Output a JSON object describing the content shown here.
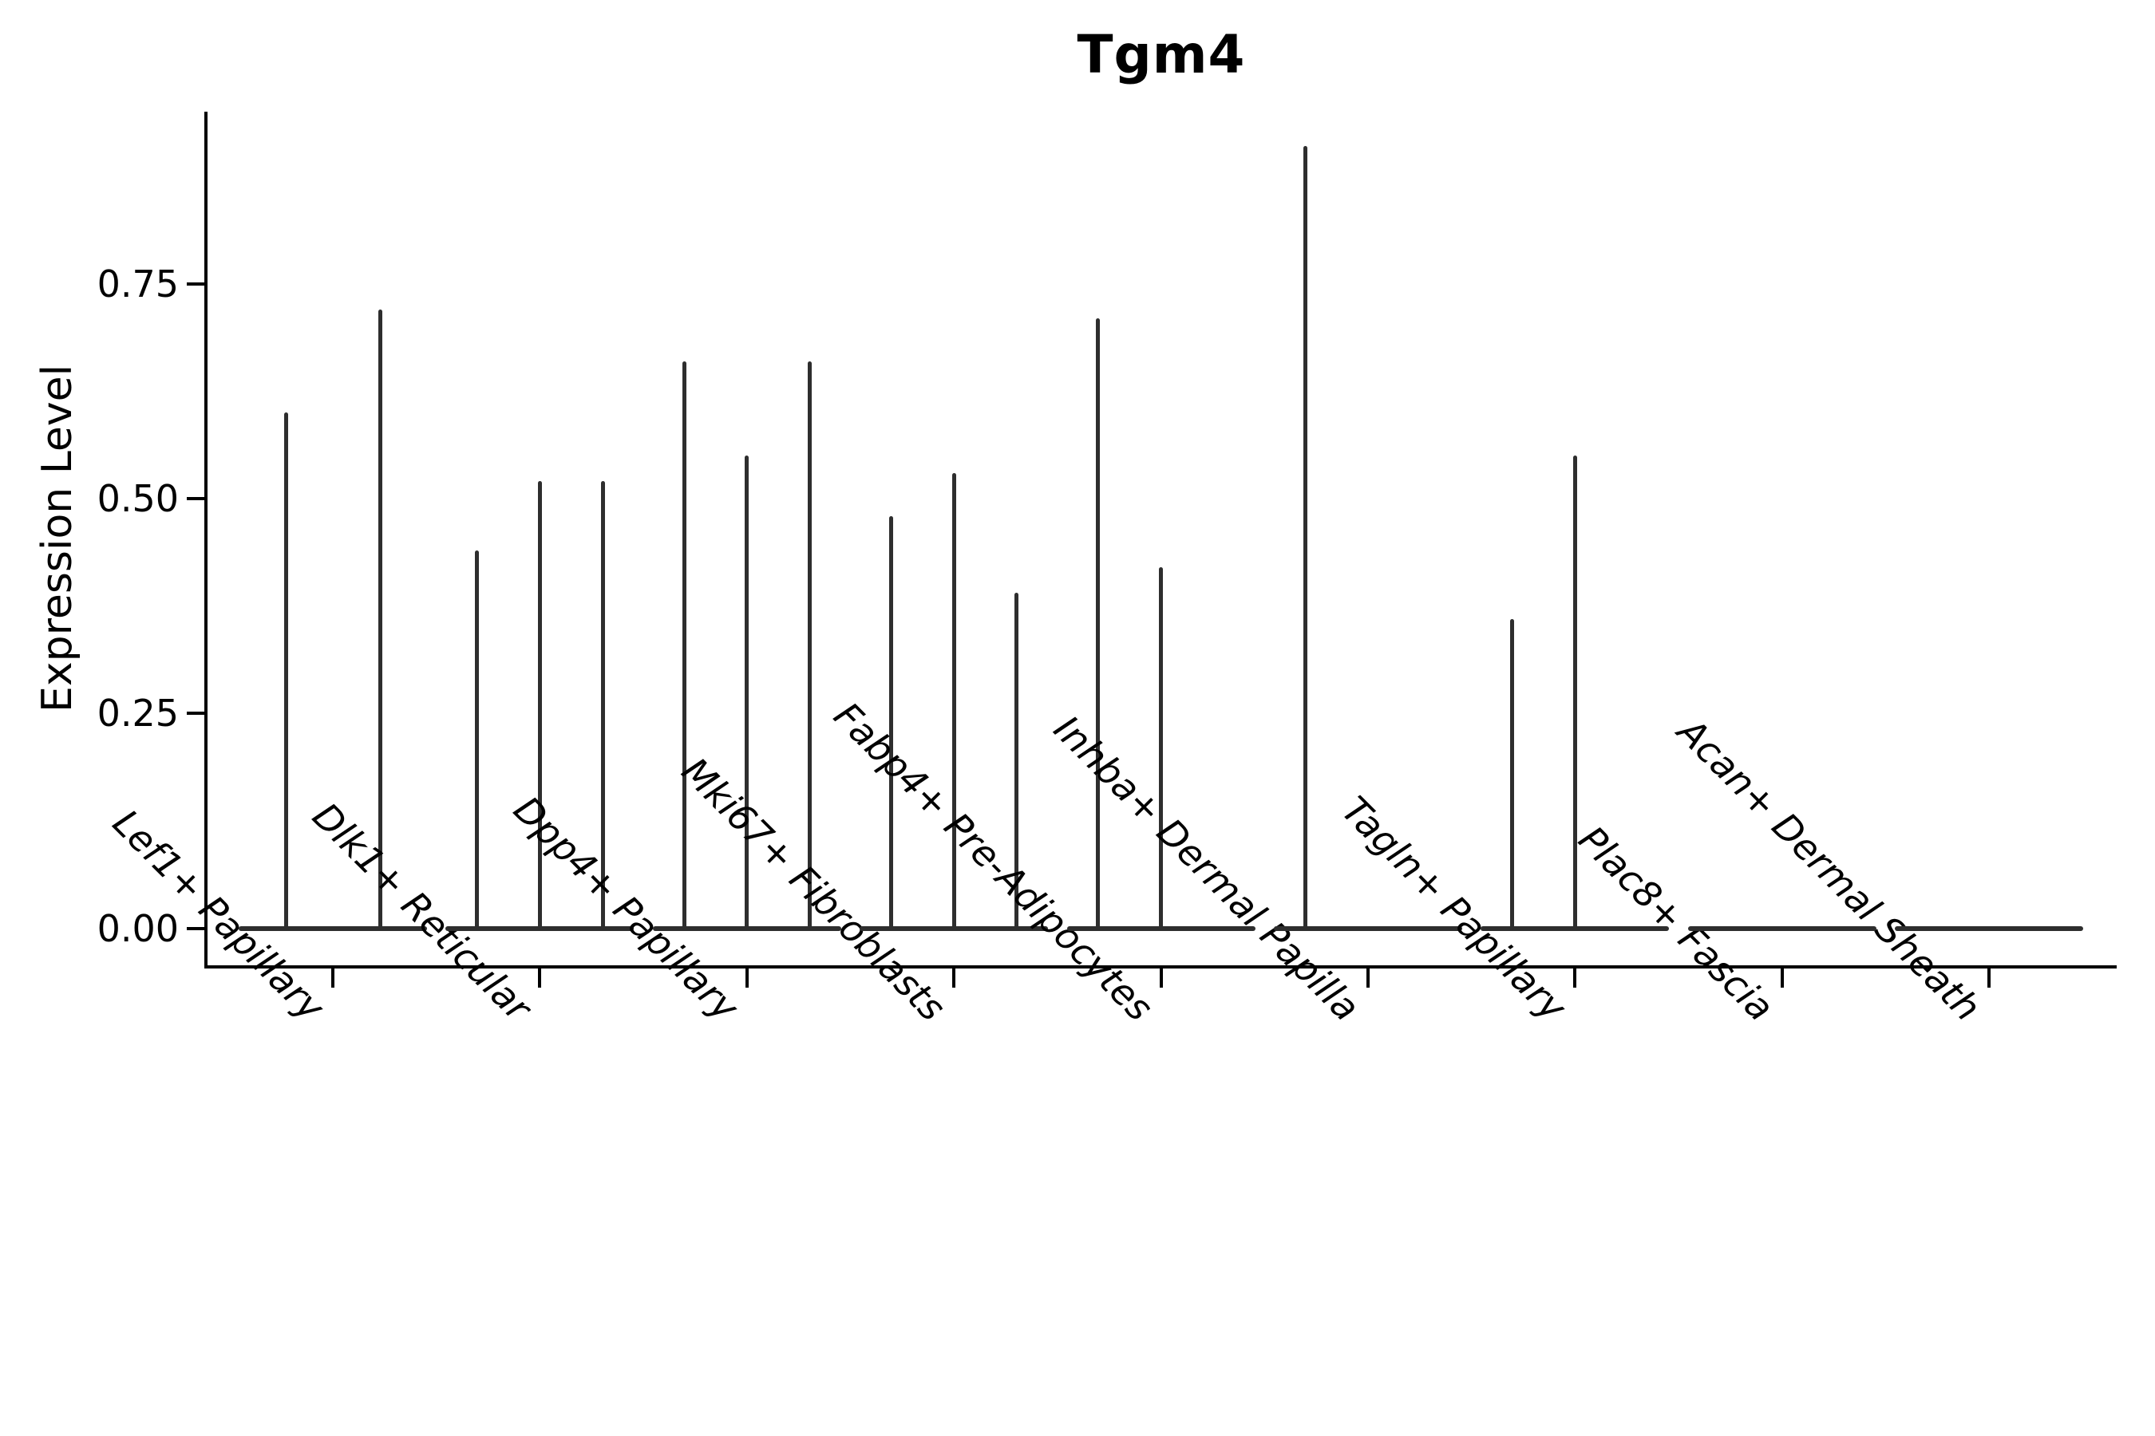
{
  "chart_data": {
    "type": "violin",
    "title": "Tgm4",
    "xlabel": "",
    "ylabel": "Expression Level",
    "ylim": [
      -0.04,
      0.95
    ],
    "grid": false,
    "legend": "none",
    "yticks": [
      {
        "value": 0.0,
        "label": "0.00"
      },
      {
        "value": 0.25,
        "label": "0.25"
      },
      {
        "value": 0.5,
        "label": "0.50"
      },
      {
        "value": 0.75,
        "label": "0.75"
      }
    ],
    "categories": [
      "Lef1+ Papillary",
      "Dlk1+ Reticular",
      "Dpp4+ Papillary",
      "Mki67+ Fibroblasts",
      "Fabp4+ Pre-Adipocytes",
      "Inhba+ Dermal Papilla",
      "Tagln+ Papillary",
      "Plac8+ Fascia",
      "Acan+ Dermal Sheath"
    ],
    "groups": [
      {
        "label": "Lef1+ Papillary",
        "n_slots": 2,
        "violins": [
          {
            "slot": 0,
            "peak": 0.6
          },
          {
            "slot": 1,
            "peak": 0.72
          }
        ]
      },
      {
        "label": "Dlk1+ Reticular",
        "n_slots": 3,
        "violins": [
          {
            "slot": 0,
            "peak": 0.44
          },
          {
            "slot": 1,
            "peak": 0.52
          },
          {
            "slot": 2,
            "peak": 0.52
          }
        ]
      },
      {
        "label": "Dpp4+ Papillary",
        "n_slots": 3,
        "violins": [
          {
            "slot": 0,
            "peak": 0.66
          },
          {
            "slot": 1,
            "peak": 0.55
          },
          {
            "slot": 2,
            "peak": 0.66
          }
        ]
      },
      {
        "label": "Mki67+ Fibroblasts",
        "n_slots": 3,
        "violins": [
          {
            "slot": 0,
            "peak": 0.48
          },
          {
            "slot": 1,
            "peak": 0.53
          },
          {
            "slot": 2,
            "peak": 0.39
          }
        ]
      },
      {
        "label": "Fabp4+ Pre-Adipocytes",
        "n_slots": 3,
        "violins": [
          {
            "slot": 0,
            "peak": 0.71
          },
          {
            "slot": 1,
            "peak": 0.42
          }
        ]
      },
      {
        "label": "Inhba+ Dermal Papilla",
        "n_slots": 3,
        "violins": [
          {
            "slot": 0,
            "peak": 0.91
          }
        ]
      },
      {
        "label": "Tagln+ Papillary",
        "n_slots": 3,
        "violins": [
          {
            "slot": 0,
            "peak": 0.36
          },
          {
            "slot": 1,
            "peak": 0.55
          }
        ]
      },
      {
        "label": "Plac8+ Fascia",
        "n_slots": 3,
        "violins": []
      },
      {
        "label": "Acan+ Dermal Sheath",
        "n_slots": 3,
        "violins": []
      }
    ],
    "colors": {
      "violin_stroke": "#2e2e2e",
      "axis": "#000000",
      "text": "#000000",
      "background": "#ffffff"
    }
  }
}
